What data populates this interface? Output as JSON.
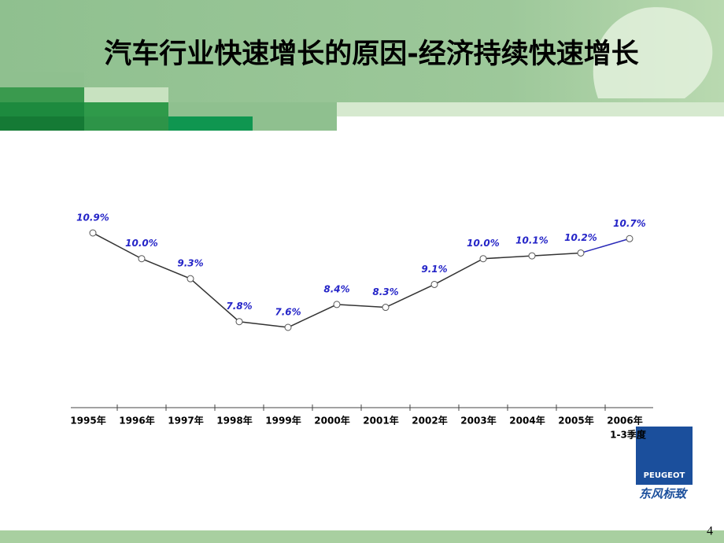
{
  "header": {
    "title": "汽车行业快速增长的原因-经济持续快速增长"
  },
  "chart_data": {
    "type": "line",
    "categories": [
      "1995年",
      "1996年",
      "1997年",
      "1998年",
      "1999年",
      "2000年",
      "2001年",
      "2002年",
      "2003年",
      "2004年",
      "2005年",
      "2006年"
    ],
    "category_note": "1-3季度",
    "series": [
      {
        "color": "#333333",
        "last_segment_color": "#2a2ab8",
        "values": [
          10.9,
          10.0,
          9.3,
          7.8,
          7.6,
          8.4,
          8.3,
          9.1,
          10.0,
          10.1,
          10.2,
          10.7
        ],
        "value_labels": [
          "10.9%",
          "10.0%",
          "9.3%",
          "7.8%",
          "7.6%",
          "8.4%",
          "8.3%",
          "9.1%",
          "10.0%",
          "10.1%",
          "10.2%",
          "10.7%"
        ],
        "label_color": "#2626c8"
      }
    ]
  },
  "logo": {
    "brand": "PEUGEOT",
    "partner": "东风标致"
  },
  "footer": {
    "page": "4"
  }
}
